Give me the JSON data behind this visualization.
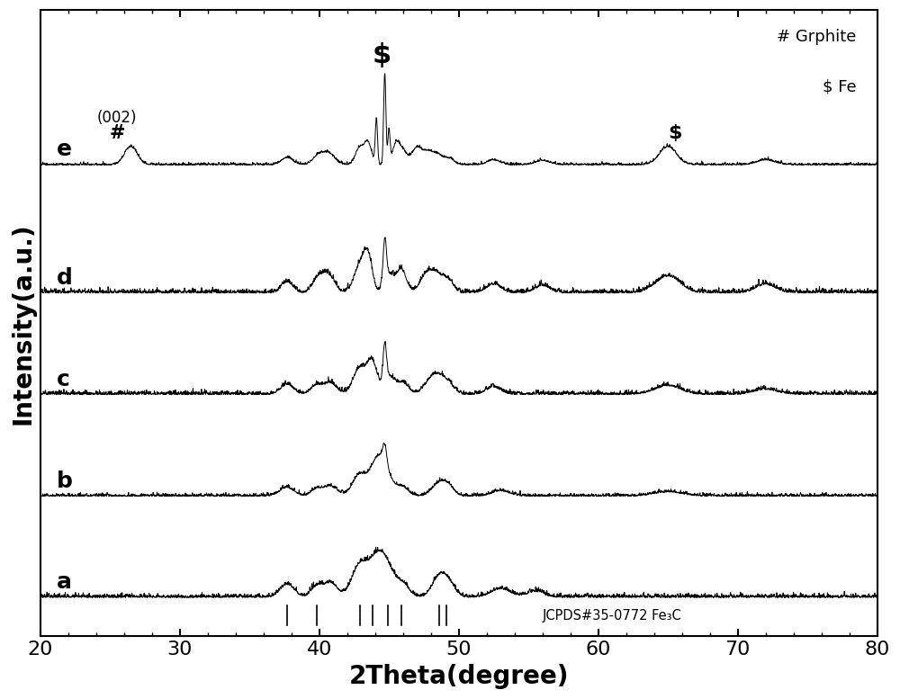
{
  "xlim": [
    20,
    80
  ],
  "xlabel": "2Theta(degree)",
  "ylabel": "Intensity(a.u.)",
  "background_color": "#ffffff",
  "line_color": "#000000",
  "axis_fontsize": 20,
  "tick_fontsize": 16,
  "series_labels": [
    "a",
    "b",
    "c",
    "d",
    "e"
  ],
  "offsets": [
    0.0,
    0.75,
    1.5,
    2.25,
    3.2
  ],
  "jcpds_peaks": [
    37.7,
    39.8,
    42.9,
    43.8,
    44.9,
    45.9,
    48.6,
    49.1
  ],
  "fe3c_label": "JCPDS#35-0772 Fe₃C",
  "noise_scale": 0.025
}
